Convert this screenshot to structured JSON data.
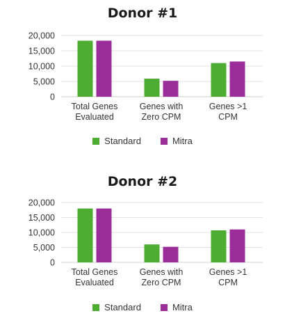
{
  "colors": {
    "standard": "#4cad32",
    "mitra": "#9b2d98",
    "grid": "#e2e2e2",
    "axis": "#cfcfcf"
  },
  "chart_data": [
    {
      "type": "bar",
      "title": "Donor #1",
      "categories": [
        "Total Genes\nEvaluated",
        "Genes with\nZero CPM",
        "Genes >1\nCPM"
      ],
      "series": [
        {
          "name": "Standard",
          "values": [
            18300,
            5900,
            11000
          ]
        },
        {
          "name": "Mitra",
          "values": [
            18300,
            5200,
            11500
          ]
        }
      ],
      "yticks": [
        "0",
        "5,000",
        "10,000",
        "15,000",
        "20,000"
      ],
      "ylim": [
        0,
        20000
      ],
      "legend": "bottom-center",
      "grid": true
    },
    {
      "type": "bar",
      "title": "Donor #2",
      "categories": [
        "Total Genes\nEvaluated",
        "Genes with\nZero CPM",
        "Genes >1\nCPM"
      ],
      "series": [
        {
          "name": "Standard",
          "values": [
            18000,
            6000,
            10700
          ]
        },
        {
          "name": "Mitra",
          "values": [
            18000,
            5200,
            11000
          ]
        }
      ],
      "yticks": [
        "0",
        "5,000",
        "10,000",
        "15,000",
        "20,000"
      ],
      "ylim": [
        0,
        20000
      ],
      "legend": "bottom-center",
      "grid": true
    }
  ]
}
